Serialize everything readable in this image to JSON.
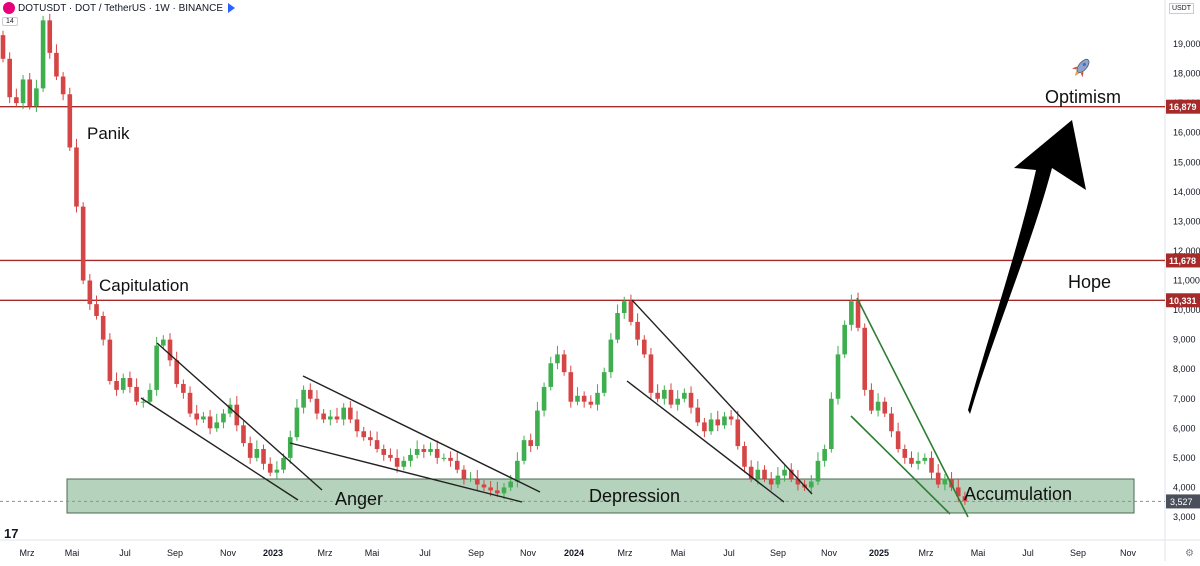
{
  "header": {
    "symbol_line": "DOTUSDT · DOT / TetherUS · 1W · BINANCE",
    "volume_badge": "14",
    "currency": "USDT"
  },
  "colors": {
    "up": "#26a69a",
    "up_fill": "#3fae4f",
    "down": "#d64545",
    "level_line": "#a52a2a",
    "zone_fill": "#a8cbb0",
    "trend_black": "#222222",
    "trend_green": "#2e7d32",
    "arrow": "#000000"
  },
  "icons": {
    "rocket": "rocket-icon",
    "settings": "gear-icon",
    "tv_logo": "tradingview-logo"
  },
  "chart_data": {
    "type": "candlestick",
    "x_ticks": [
      "Mrz",
      "Mai",
      "Jul",
      "Sep",
      "Nov",
      "2023",
      "Mrz",
      "Mai",
      "Jul",
      "Sep",
      "Nov",
      "2024",
      "Mrz",
      "Mai",
      "Jul",
      "Sep",
      "Nov",
      "2025",
      "Mrz",
      "Mai",
      "Jul",
      "Sep",
      "Nov"
    ],
    "y_ticks": [
      "3,000",
      "4,000",
      "5,000",
      "6,000",
      "7,000",
      "8,000",
      "9,000",
      "10,000",
      "11,000",
      "12,000",
      "13,000",
      "14,000",
      "15,000",
      "16,000",
      "17,000",
      "18,000",
      "19,000"
    ],
    "ylim": [
      2700,
      20000
    ],
    "levels": [
      {
        "value": 16.879,
        "label": "16,879"
      },
      {
        "value": 11.678,
        "label": "11,678"
      },
      {
        "value": 10.331,
        "label": "10,331"
      }
    ],
    "last_price": {
      "value": 3.527,
      "label": "3,527"
    },
    "annotations": [
      "Panik",
      "Capitulation",
      "Anger",
      "Depression",
      "Hope",
      "Accumulation",
      "Optimism"
    ],
    "closes": [
      18.5,
      17.2,
      17.0,
      17.8,
      16.9,
      17.5,
      19.8,
      18.7,
      17.9,
      17.3,
      15.5,
      13.5,
      11.0,
      10.2,
      9.8,
      9.0,
      7.6,
      7.3,
      7.7,
      7.4,
      6.9,
      6.9,
      7.3,
      8.8,
      9.0,
      8.3,
      7.5,
      7.2,
      6.5,
      6.3,
      6.4,
      6.0,
      6.2,
      6.5,
      6.8,
      6.1,
      5.5,
      5.0,
      5.3,
      4.8,
      4.5,
      4.6,
      5.0,
      5.7,
      6.7,
      7.3,
      7.0,
      6.5,
      6.3,
      6.4,
      6.3,
      6.7,
      6.3,
      5.9,
      5.7,
      5.6,
      5.3,
      5.1,
      5.0,
      4.7,
      4.9,
      5.1,
      5.3,
      5.2,
      5.3,
      5.0,
      5.0,
      4.9,
      4.6,
      4.3,
      4.3,
      4.1,
      4.0,
      3.9,
      3.8,
      4.0,
      4.2,
      4.9,
      5.6,
      5.4,
      6.6,
      7.4,
      8.2,
      8.5,
      7.9,
      6.9,
      7.1,
      6.9,
      6.8,
      7.2,
      7.9,
      9.0,
      9.9,
      10.3,
      9.6,
      9.0,
      8.5,
      7.2,
      7.0,
      7.3,
      6.8,
      7.0,
      7.2,
      6.7,
      6.2,
      5.9,
      6.3,
      6.1,
      6.4,
      6.3,
      5.4,
      4.7,
      4.3,
      4.6,
      4.3,
      4.1,
      4.4,
      4.6,
      4.3,
      4.1,
      4.0,
      4.2,
      4.9,
      5.3,
      7.0,
      8.5,
      9.5,
      10.3,
      9.4,
      7.3,
      6.6,
      6.9,
      6.5,
      5.9,
      5.3,
      5.0,
      4.8,
      4.9,
      5.0,
      4.5,
      4.1,
      4.3,
      4.0,
      3.7,
      3.53
    ]
  },
  "annotations_text": {
    "panik": "Panik",
    "capitulation": "Capitulation",
    "anger": "Anger",
    "depression": "Depression",
    "hope": "Hope",
    "accumulation": "Accumulation",
    "optimism": "Optimism"
  }
}
